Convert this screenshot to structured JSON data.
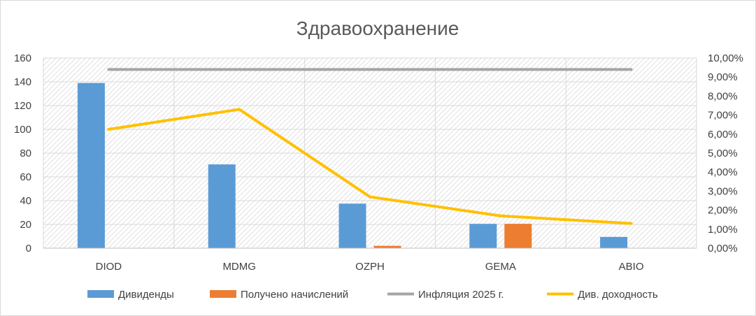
{
  "chart_data": {
    "type": "bar",
    "title": "Здравоохранение",
    "categories": [
      "DIOD",
      "MDMG",
      "OZPH",
      "GEMA",
      "ABIO"
    ],
    "y_left": {
      "range": [
        0,
        160
      ],
      "ticks": [
        "0",
        "20",
        "40",
        "60",
        "80",
        "100",
        "120",
        "140",
        "160"
      ]
    },
    "y_right": {
      "range": [
        0,
        10
      ],
      "ticks": [
        "0,00%",
        "1,00%",
        "2,00%",
        "3,00%",
        "4,00%",
        "5,00%",
        "6,00%",
        "7,00%",
        "8,00%",
        "9,00%",
        "10,00%"
      ]
    },
    "series": [
      {
        "name": "Дивиденды",
        "type": "bar",
        "axis": "left",
        "color": "#5B9BD5",
        "values": [
          139,
          70.5,
          37.5,
          20.5,
          9.5
        ]
      },
      {
        "name": "Получено начислений",
        "type": "bar",
        "axis": "left",
        "color": "#ED7D31",
        "values": [
          0,
          0,
          2,
          20.5,
          0
        ]
      },
      {
        "name": "Инфляция 2025 г.",
        "type": "line",
        "axis": "right",
        "color": "#A5A5A5",
        "values": [
          9.4,
          9.4,
          9.4,
          9.4,
          9.4
        ]
      },
      {
        "name": "Див. доходность",
        "type": "line",
        "axis": "right",
        "color": "#FFC000",
        "values": [
          6.25,
          7.3,
          2.7,
          1.7,
          1.3
        ]
      }
    ],
    "grid": true,
    "legend_position": "bottom"
  }
}
